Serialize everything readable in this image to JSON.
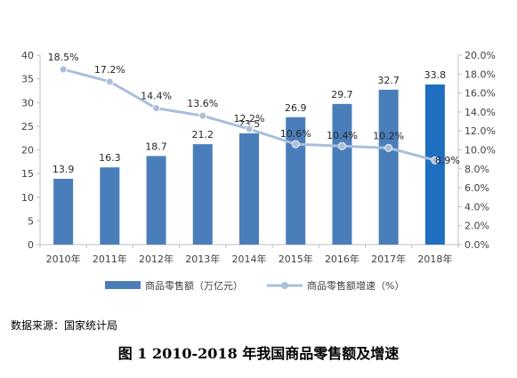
{
  "chart_data": {
    "type": "bar",
    "categories": [
      "2010年",
      "2011年",
      "2012年",
      "2013年",
      "2014年",
      "2015年",
      "2016年",
      "2017年",
      "2018年"
    ],
    "y_ticks": [
      "0",
      "5",
      "10",
      "15",
      "20",
      "25",
      "30",
      "35",
      "40"
    ],
    "y2_ticks": [
      "0.0%",
      "2.0%",
      "4.0%",
      "6.0%",
      "8.0%",
      "10.0%",
      "12.0%",
      "14.0%",
      "16.0%",
      "18.0%",
      "20.0%"
    ],
    "ylim": [
      0,
      40
    ],
    "y2lim": [
      0,
      20
    ],
    "series": [
      {
        "name": "商品零售额（万亿元）",
        "type": "bar",
        "axis": "left",
        "values": [
          13.9,
          16.3,
          18.7,
          21.2,
          23.5,
          26.9,
          29.7,
          32.7,
          33.8
        ],
        "labels": [
          "13.9",
          "16.3",
          "18.7",
          "21.2",
          "23.5",
          "26.9",
          "29.7",
          "32.7",
          "33.8"
        ],
        "color": "#4a7ebb",
        "highlight_color": "#1f6fc0"
      },
      {
        "name": "商品零售额增速（%）",
        "type": "line",
        "axis": "right",
        "values": [
          18.5,
          17.2,
          14.4,
          13.6,
          12.2,
          10.6,
          10.4,
          10.2,
          8.9
        ],
        "labels": [
          "18.5%",
          "17.2%",
          "14.4%",
          "13.6%",
          "12.2%",
          "10.6%",
          "10.4%",
          "10.2%",
          "8.9%"
        ],
        "color": "#a9bfdb",
        "marker_color": "#a9bfdb"
      }
    ],
    "legend_position": "bottom",
    "grid": false
  },
  "source": "数据来源：国家统计局",
  "caption": "图 1  2010-2018 年我国商品零售额及增速",
  "colors": {
    "axis": "#bfbfbf",
    "text": "#404040"
  }
}
